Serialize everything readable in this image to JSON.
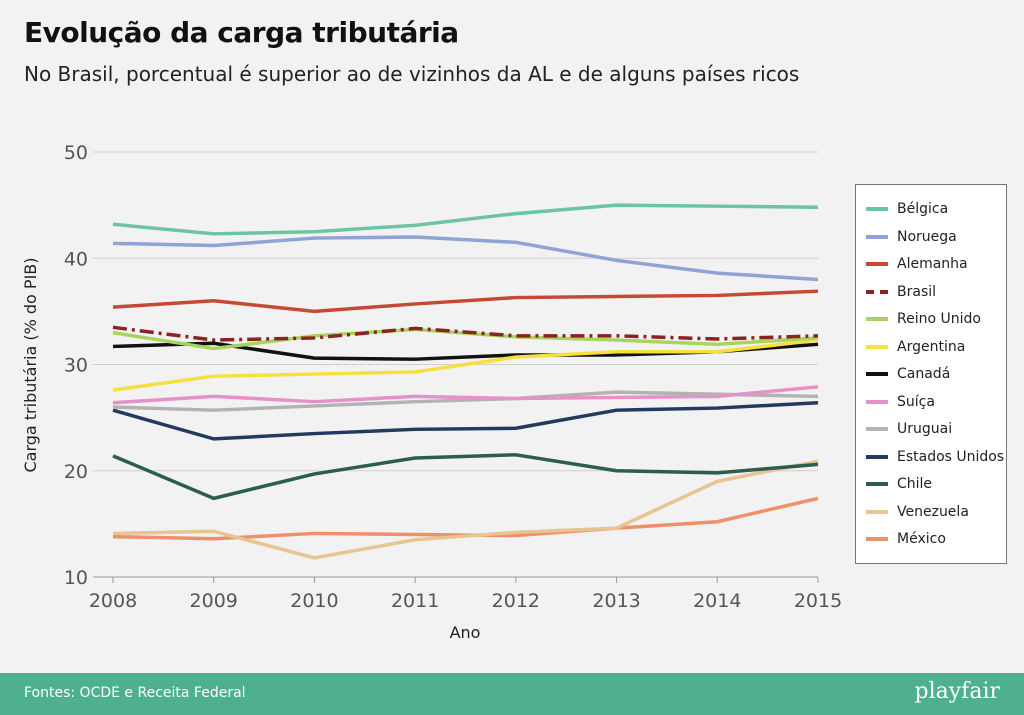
{
  "header": {
    "title": "Evolução da carga tributária",
    "subtitle": "No Brasil, porcentual é superior ao de vizinhos da AL e de alguns países ricos"
  },
  "footer": {
    "source": "Fontes: OCDE e Receita Federal",
    "logo": "playfair"
  },
  "chart_data": {
    "type": "line",
    "xlabel": "Ano",
    "ylabel": "Carga tributária (% do PIB)",
    "x": [
      2008,
      2009,
      2010,
      2011,
      2012,
      2013,
      2014,
      2015
    ],
    "xlim": [
      2008,
      2015
    ],
    "ylim": [
      10,
      50
    ],
    "yticks": [
      10,
      20,
      30,
      40,
      50
    ],
    "grid": "horizontal",
    "legend_position": "right",
    "series": [
      {
        "name": "Bélgica",
        "color": "#6cc4a1",
        "dash": "solid",
        "values": [
          43.2,
          42.3,
          42.5,
          43.1,
          44.2,
          45.0,
          44.9,
          44.8
        ]
      },
      {
        "name": "Noruega",
        "color": "#8fa4d4",
        "dash": "solid",
        "values": [
          41.4,
          41.2,
          41.9,
          42.0,
          41.5,
          39.8,
          38.6,
          38.0
        ]
      },
      {
        "name": "Alemanha",
        "color": "#c54a34",
        "dash": "solid",
        "values": [
          35.4,
          36.0,
          35.0,
          35.7,
          36.3,
          36.4,
          36.5,
          36.9
        ]
      },
      {
        "name": "Brasil",
        "color": "#8b2323",
        "dash": "dashdot",
        "values": [
          33.5,
          32.3,
          32.5,
          33.4,
          32.7,
          32.7,
          32.4,
          32.7
        ]
      },
      {
        "name": "Reino Unido",
        "color": "#a8d45b",
        "dash": "solid",
        "values": [
          33.0,
          31.5,
          32.7,
          33.3,
          32.6,
          32.3,
          31.9,
          32.5
        ]
      },
      {
        "name": "Argentina",
        "color": "#f7e03c",
        "dash": "solid",
        "values": [
          27.6,
          28.9,
          29.1,
          29.3,
          30.7,
          31.2,
          31.2,
          32.3
        ]
      },
      {
        "name": "Canadá",
        "color": "#111111",
        "dash": "solid",
        "values": [
          31.7,
          32.0,
          30.6,
          30.5,
          30.9,
          30.9,
          31.2,
          31.9
        ]
      },
      {
        "name": "Suíça",
        "color": "#e691c8",
        "dash": "solid",
        "values": [
          26.4,
          27.0,
          26.5,
          27.0,
          26.8,
          26.9,
          27.0,
          27.9
        ]
      },
      {
        "name": "Uruguai",
        "color": "#b3b3b3",
        "dash": "solid",
        "values": [
          26.0,
          25.7,
          26.1,
          26.5,
          26.8,
          27.4,
          27.2,
          27.0
        ]
      },
      {
        "name": "Estados Unidos",
        "color": "#233a60",
        "dash": "solid",
        "values": [
          25.7,
          23.0,
          23.5,
          23.9,
          24.0,
          25.7,
          25.9,
          26.4
        ]
      },
      {
        "name": "Chile",
        "color": "#2b5e4c",
        "dash": "solid",
        "values": [
          21.4,
          17.4,
          19.7,
          21.2,
          21.5,
          20.0,
          19.8,
          20.6
        ]
      },
      {
        "name": "Venezuela",
        "color": "#e6c592",
        "dash": "solid",
        "values": [
          14.1,
          14.3,
          11.8,
          13.5,
          14.2,
          14.6,
          19.0,
          20.9
        ]
      },
      {
        "name": "México",
        "color": "#f0906a",
        "dash": "solid",
        "values": [
          13.8,
          13.6,
          14.1,
          14.0,
          13.9,
          14.6,
          15.2,
          17.4
        ]
      }
    ]
  }
}
